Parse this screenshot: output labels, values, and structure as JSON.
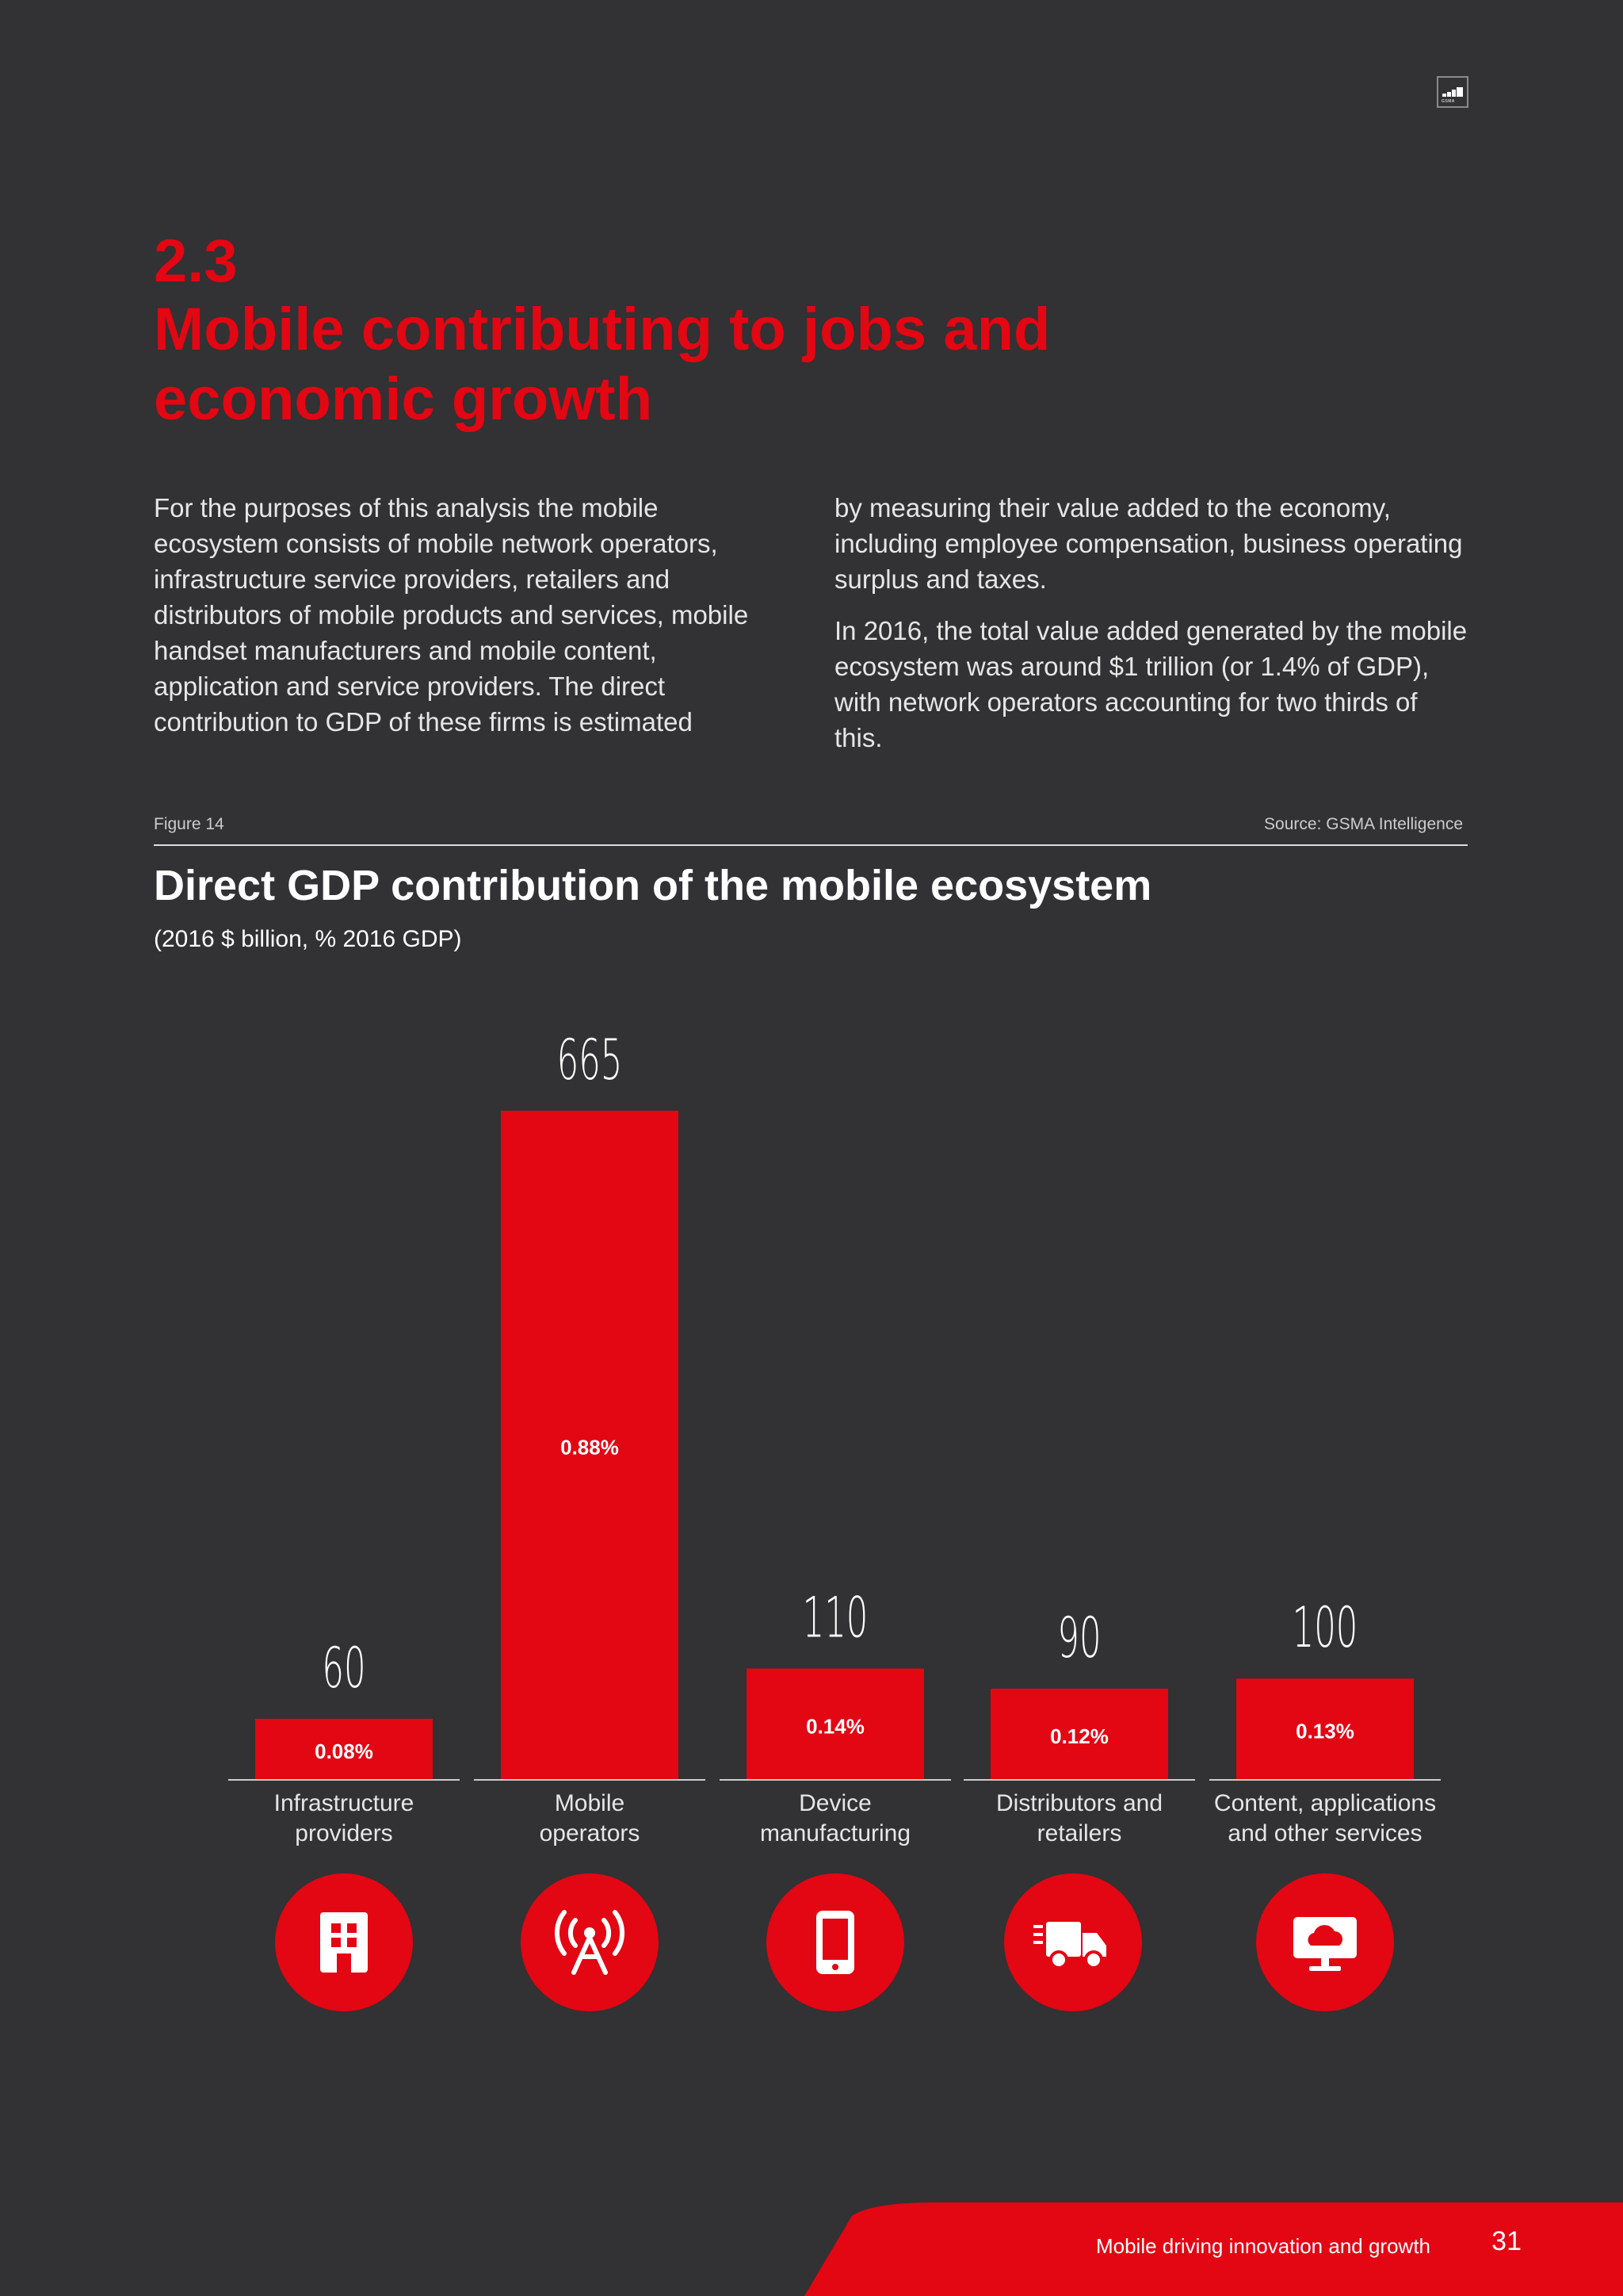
{
  "section": {
    "number": "2.3",
    "title": "Mobile contributing to jobs and economic growth"
  },
  "body": {
    "left_text": "For the purposes of this analysis the mobile ecosystem consists of mobile network operators, infrastructure service providers, retailers and distributors of mobile products and services, mobile handset manufacturers and mobile content, application and service providers. The direct contribution to GDP of these firms is estimated",
    "right_text_1": "by measuring their value added to the economy, including employee compensation, business operating surplus and taxes.",
    "right_text_2": "In 2016, the total value added generated by the mobile ecosystem was around $1 trillion (or 1.4% of GDP), with network operators accounting for two thirds of this."
  },
  "figure": {
    "label": "Figure 14",
    "source": "Source: GSMA Intelligence"
  },
  "logo": {
    "text": "GSMA"
  },
  "chart_data": {
    "type": "bar",
    "title": "Direct GDP contribution of the mobile ecosystem",
    "subtitle": "(2016 $ billion, % 2016 GDP)",
    "categories": [
      [
        "Infrastructure",
        "providers"
      ],
      [
        "Mobile",
        "operators"
      ],
      [
        "Device",
        "manufacturing"
      ],
      [
        "Distributors and",
        "retailers"
      ],
      [
        "Content, applications",
        "and other services"
      ]
    ],
    "values": [
      60,
      665,
      110,
      90,
      100
    ],
    "value_labels": [
      "60",
      "665",
      "110",
      "90",
      "100"
    ],
    "share_labels": [
      "0.08%",
      "0.88%",
      "0.14%",
      "0.12%",
      "0.13%"
    ],
    "icons": [
      "building-icon",
      "antenna-tower-icon",
      "smartphone-icon",
      "delivery-truck-icon",
      "cloud-monitor-icon"
    ],
    "ylim": [
      0,
      665
    ],
    "grid": false,
    "colors": {
      "bar": "#e30613",
      "background": "#323133",
      "text": "#ffffff"
    }
  },
  "footer": {
    "title": "Mobile driving innovation and growth",
    "page_number": "31"
  }
}
